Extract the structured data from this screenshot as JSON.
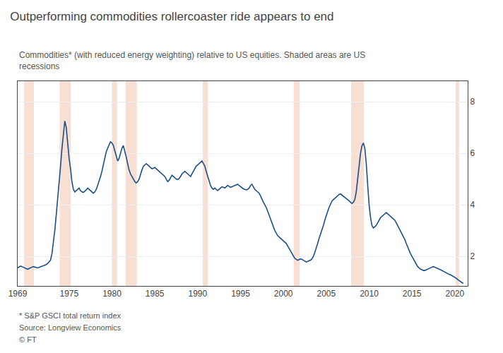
{
  "chart_data": {
    "type": "line",
    "title": "Outperforming commodities rollercoaster ride appears to end",
    "subtitle": "Commodities* (with reduced energy weighting) relative to US equities. Shaded areas are US\nrecessions",
    "annotations": [
      "* S&P GSCI total return index",
      "Source: Longview Economics",
      "© FT"
    ],
    "color": "#1a4f8a",
    "grid": true,
    "xlim": [
      1969.0,
      2021.5
    ],
    "xticks": [
      1969,
      1975,
      1980,
      1985,
      1990,
      1995,
      2000,
      2005,
      2010,
      2015,
      2020
    ],
    "ylim": [
      0.85,
      8.8
    ],
    "yticks": [
      2,
      4,
      6,
      8
    ],
    "recessions": {
      "color": "#f2c4b0",
      "periods": [
        [
          1969.75,
          1970.9
        ],
        [
          1973.9,
          1975.2
        ],
        [
          1980.0,
          1980.6
        ],
        [
          1981.6,
          1982.9
        ],
        [
          1990.6,
          1991.2
        ],
        [
          2001.2,
          2001.9
        ],
        [
          2007.9,
          2009.4
        ],
        [
          2020.1,
          2020.5
        ]
      ]
    },
    "x": [
      1969.0,
      1969.17,
      1969.33,
      1969.5,
      1969.67,
      1969.83,
      1970.0,
      1970.17,
      1970.33,
      1970.5,
      1970.67,
      1970.83,
      1971.0,
      1971.17,
      1971.33,
      1971.5,
      1971.67,
      1971.83,
      1972.0,
      1972.17,
      1972.33,
      1972.5,
      1972.67,
      1972.83,
      1973.0,
      1973.17,
      1973.33,
      1973.5,
      1973.67,
      1973.83,
      1974.0,
      1974.17,
      1974.33,
      1974.5,
      1974.67,
      1974.83,
      1975.0,
      1975.17,
      1975.33,
      1975.5,
      1975.67,
      1975.83,
      1976.0,
      1976.17,
      1976.33,
      1976.5,
      1976.67,
      1976.83,
      1977.0,
      1977.17,
      1977.33,
      1977.5,
      1977.67,
      1977.83,
      1978.0,
      1978.17,
      1978.33,
      1978.5,
      1978.67,
      1978.83,
      1979.0,
      1979.17,
      1979.33,
      1979.5,
      1979.67,
      1979.83,
      1980.0,
      1980.17,
      1980.33,
      1980.5,
      1980.67,
      1980.83,
      1981.0,
      1981.17,
      1981.33,
      1981.5,
      1981.67,
      1981.83,
      1982.0,
      1982.17,
      1982.33,
      1982.5,
      1982.67,
      1982.83,
      1983.0,
      1983.17,
      1983.33,
      1983.5,
      1983.67,
      1983.83,
      1984.0,
      1984.17,
      1984.33,
      1984.5,
      1984.67,
      1984.83,
      1985.0,
      1985.17,
      1985.33,
      1985.5,
      1985.67,
      1985.83,
      1986.0,
      1986.17,
      1986.33,
      1986.5,
      1986.67,
      1986.83,
      1987.0,
      1987.17,
      1987.33,
      1987.5,
      1987.67,
      1987.83,
      1988.0,
      1988.17,
      1988.33,
      1988.5,
      1988.67,
      1988.83,
      1989.0,
      1989.17,
      1989.33,
      1989.5,
      1989.67,
      1989.83,
      1990.0,
      1990.17,
      1990.33,
      1990.5,
      1990.67,
      1990.83,
      1991.0,
      1991.17,
      1991.33,
      1991.5,
      1991.67,
      1991.83,
      1992.0,
      1992.17,
      1992.33,
      1992.5,
      1992.67,
      1992.83,
      1993.0,
      1993.17,
      1993.33,
      1993.5,
      1993.67,
      1993.83,
      1994.0,
      1994.17,
      1994.33,
      1994.5,
      1994.67,
      1994.83,
      1995.0,
      1995.17,
      1995.33,
      1995.5,
      1995.67,
      1995.83,
      1996.0,
      1996.17,
      1996.33,
      1996.5,
      1996.67,
      1996.83,
      1997.0,
      1997.17,
      1997.33,
      1997.5,
      1997.67,
      1997.83,
      1998.0,
      1998.17,
      1998.33,
      1998.5,
      1998.67,
      1998.83,
      1999.0,
      1999.17,
      1999.33,
      1999.5,
      1999.67,
      1999.83,
      2000.0,
      2000.17,
      2000.33,
      2000.5,
      2000.67,
      2000.83,
      2001.0,
      2001.17,
      2001.33,
      2001.5,
      2001.67,
      2001.83,
      2002.0,
      2002.17,
      2002.33,
      2002.5,
      2002.67,
      2002.83,
      2003.0,
      2003.17,
      2003.33,
      2003.5,
      2003.67,
      2003.83,
      2004.0,
      2004.17,
      2004.33,
      2004.5,
      2004.67,
      2004.83,
      2005.0,
      2005.17,
      2005.33,
      2005.5,
      2005.67,
      2005.83,
      2006.0,
      2006.17,
      2006.33,
      2006.5,
      2006.67,
      2006.83,
      2007.0,
      2007.17,
      2007.33,
      2007.5,
      2007.67,
      2007.83,
      2008.0,
      2008.17,
      2008.33,
      2008.5,
      2008.67,
      2008.83,
      2009.0,
      2009.17,
      2009.33,
      2009.5,
      2009.67,
      2009.83,
      2010.0,
      2010.17,
      2010.33,
      2010.5,
      2010.67,
      2010.83,
      2011.0,
      2011.17,
      2011.33,
      2011.5,
      2011.67,
      2011.83,
      2012.0,
      2012.17,
      2012.33,
      2012.5,
      2012.67,
      2012.83,
      2013.0,
      2013.17,
      2013.33,
      2013.5,
      2013.67,
      2013.83,
      2014.0,
      2014.17,
      2014.33,
      2014.5,
      2014.67,
      2014.83,
      2015.0,
      2015.17,
      2015.33,
      2015.5,
      2015.67,
      2015.83,
      2016.0,
      2016.17,
      2016.33,
      2016.5,
      2016.67,
      2016.83,
      2017.0,
      2017.17,
      2017.33,
      2017.5,
      2017.67,
      2017.83,
      2018.0,
      2018.17,
      2018.33,
      2018.5,
      2018.67,
      2018.83,
      2019.0,
      2019.17,
      2019.33,
      2019.5,
      2019.67,
      2019.83,
      2020.0,
      2020.17,
      2020.33,
      2020.5,
      2020.67,
      2020.83,
      2021.0
    ],
    "values": [
      1.55,
      1.58,
      1.62,
      1.6,
      1.57,
      1.53,
      1.52,
      1.5,
      1.53,
      1.55,
      1.58,
      1.6,
      1.58,
      1.56,
      1.55,
      1.57,
      1.6,
      1.62,
      1.63,
      1.65,
      1.68,
      1.72,
      1.78,
      1.85,
      2.1,
      2.5,
      3.0,
      3.6,
      4.2,
      4.8,
      5.5,
      6.2,
      6.8,
      7.25,
      7.0,
      6.4,
      5.8,
      5.4,
      4.9,
      4.6,
      4.5,
      4.55,
      4.6,
      4.65,
      4.55,
      4.5,
      4.48,
      4.52,
      4.58,
      4.65,
      4.6,
      4.55,
      4.5,
      4.45,
      4.5,
      4.6,
      4.75,
      4.9,
      5.1,
      5.3,
      5.55,
      5.8,
      6.05,
      6.2,
      6.35,
      6.45,
      6.4,
      6.3,
      6.1,
      5.9,
      5.7,
      5.8,
      6.0,
      6.2,
      6.3,
      6.1,
      5.85,
      5.6,
      5.35,
      5.2,
      5.1,
      5.0,
      4.9,
      4.85,
      4.9,
      5.0,
      5.2,
      5.35,
      5.5,
      5.55,
      5.6,
      5.55,
      5.5,
      5.45,
      5.4,
      5.42,
      5.45,
      5.4,
      5.35,
      5.3,
      5.25,
      5.2,
      5.15,
      5.1,
      5.0,
      4.9,
      4.95,
      5.05,
      5.15,
      5.1,
      5.05,
      5.0,
      4.98,
      5.02,
      5.1,
      5.2,
      5.25,
      5.3,
      5.25,
      5.2,
      5.15,
      5.1,
      5.2,
      5.3,
      5.4,
      5.5,
      5.55,
      5.6,
      5.65,
      5.7,
      5.6,
      5.5,
      5.3,
      5.1,
      4.9,
      4.75,
      4.65,
      4.6,
      4.65,
      4.6,
      4.55,
      4.6,
      4.65,
      4.7,
      4.68,
      4.65,
      4.7,
      4.75,
      4.72,
      4.68,
      4.7,
      4.72,
      4.75,
      4.78,
      4.8,
      4.75,
      4.7,
      4.65,
      4.62,
      4.6,
      4.58,
      4.6,
      4.65,
      4.75,
      4.8,
      4.7,
      4.6,
      4.55,
      4.5,
      4.45,
      4.35,
      4.2,
      4.1,
      4.0,
      3.9,
      3.75,
      3.6,
      3.45,
      3.3,
      3.15,
      3.0,
      2.9,
      2.8,
      2.75,
      2.7,
      2.65,
      2.6,
      2.55,
      2.5,
      2.4,
      2.3,
      2.2,
      2.1,
      2.0,
      1.92,
      1.88,
      1.85,
      1.87,
      1.9,
      1.88,
      1.85,
      1.8,
      1.78,
      1.8,
      1.82,
      1.85,
      1.9,
      2.0,
      2.15,
      2.3,
      2.5,
      2.7,
      2.85,
      3.0,
      3.2,
      3.4,
      3.6,
      3.75,
      3.9,
      4.05,
      4.15,
      4.2,
      4.25,
      4.3,
      4.35,
      4.4,
      4.42,
      4.38,
      4.35,
      4.3,
      4.25,
      4.2,
      4.15,
      4.1,
      4.05,
      4.1,
      4.2,
      4.5,
      5.0,
      5.5,
      6.0,
      6.3,
      6.4,
      6.2,
      5.6,
      4.8,
      4.0,
      3.5,
      3.2,
      3.1,
      3.15,
      3.2,
      3.3,
      3.4,
      3.5,
      3.55,
      3.6,
      3.65,
      3.7,
      3.65,
      3.6,
      3.55,
      3.5,
      3.45,
      3.4,
      3.3,
      3.2,
      3.1,
      3.0,
      2.9,
      2.8,
      2.65,
      2.5,
      2.35,
      2.2,
      2.1,
      2.0,
      1.9,
      1.8,
      1.7,
      1.6,
      1.55,
      1.5,
      1.48,
      1.45,
      1.45,
      1.48,
      1.5,
      1.52,
      1.55,
      1.58,
      1.6,
      1.58,
      1.55,
      1.52,
      1.5,
      1.48,
      1.45,
      1.4,
      1.38,
      1.35,
      1.33,
      1.3,
      1.28,
      1.25,
      1.22,
      1.2,
      1.15,
      1.1,
      1.05,
      1.0,
      0.98,
      0.95
    ]
  }
}
